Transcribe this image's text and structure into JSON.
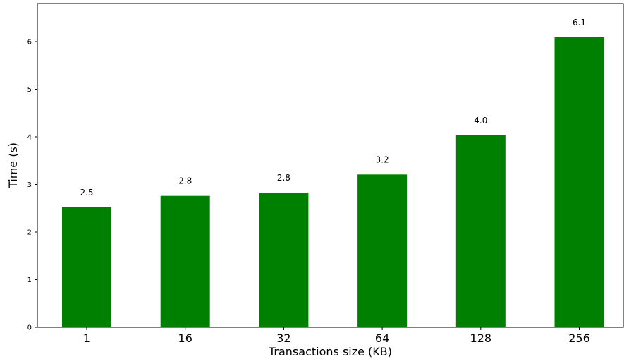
{
  "chart_data": {
    "type": "bar",
    "categories": [
      "1",
      "16",
      "32",
      "64",
      "128",
      "256"
    ],
    "values": [
      2.52,
      2.76,
      2.83,
      3.21,
      4.03,
      6.09
    ],
    "data_labels": [
      "2.5",
      "2.8",
      "2.8",
      "3.2",
      "4.0",
      "6.1"
    ],
    "xlabel": "Transactions size (KB)",
    "ylabel": "Time (s)",
    "ylim": [
      0,
      6.8
    ],
    "yticks": [
      0,
      1,
      2,
      3,
      4,
      5,
      6
    ],
    "bar_color": "#008000",
    "grid": false
  }
}
